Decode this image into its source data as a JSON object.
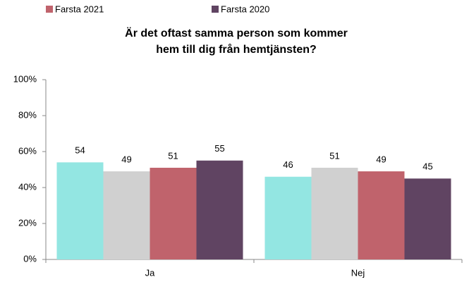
{
  "chart_data": {
    "type": "bar",
    "title": [
      "Är det oftast samma person som kommer",
      "hem till dig från hemtjänsten?"
    ],
    "categories": [
      "Ja",
      "Nej"
    ],
    "series": [
      {
        "color": "#93e6e2",
        "values": [
          54,
          46
        ]
      },
      {
        "color": "#d0d0d0",
        "values": [
          49,
          51
        ]
      },
      {
        "name": "Farsta 2021",
        "color": "#c0636c",
        "values": [
          51,
          49
        ]
      },
      {
        "name": "Farsta 2020",
        "color": "#604462",
        "values": [
          55,
          45
        ]
      }
    ],
    "ylim": [
      0,
      100
    ],
    "yticks": [
      {
        "value": 0,
        "label": "0%"
      },
      {
        "value": 20,
        "label": "20%"
      },
      {
        "value": 40,
        "label": "40%"
      },
      {
        "value": 60,
        "label": "60%"
      },
      {
        "value": 80,
        "label": "80%"
      },
      {
        "value": 100,
        "label": "100%"
      }
    ],
    "grid": false
  }
}
